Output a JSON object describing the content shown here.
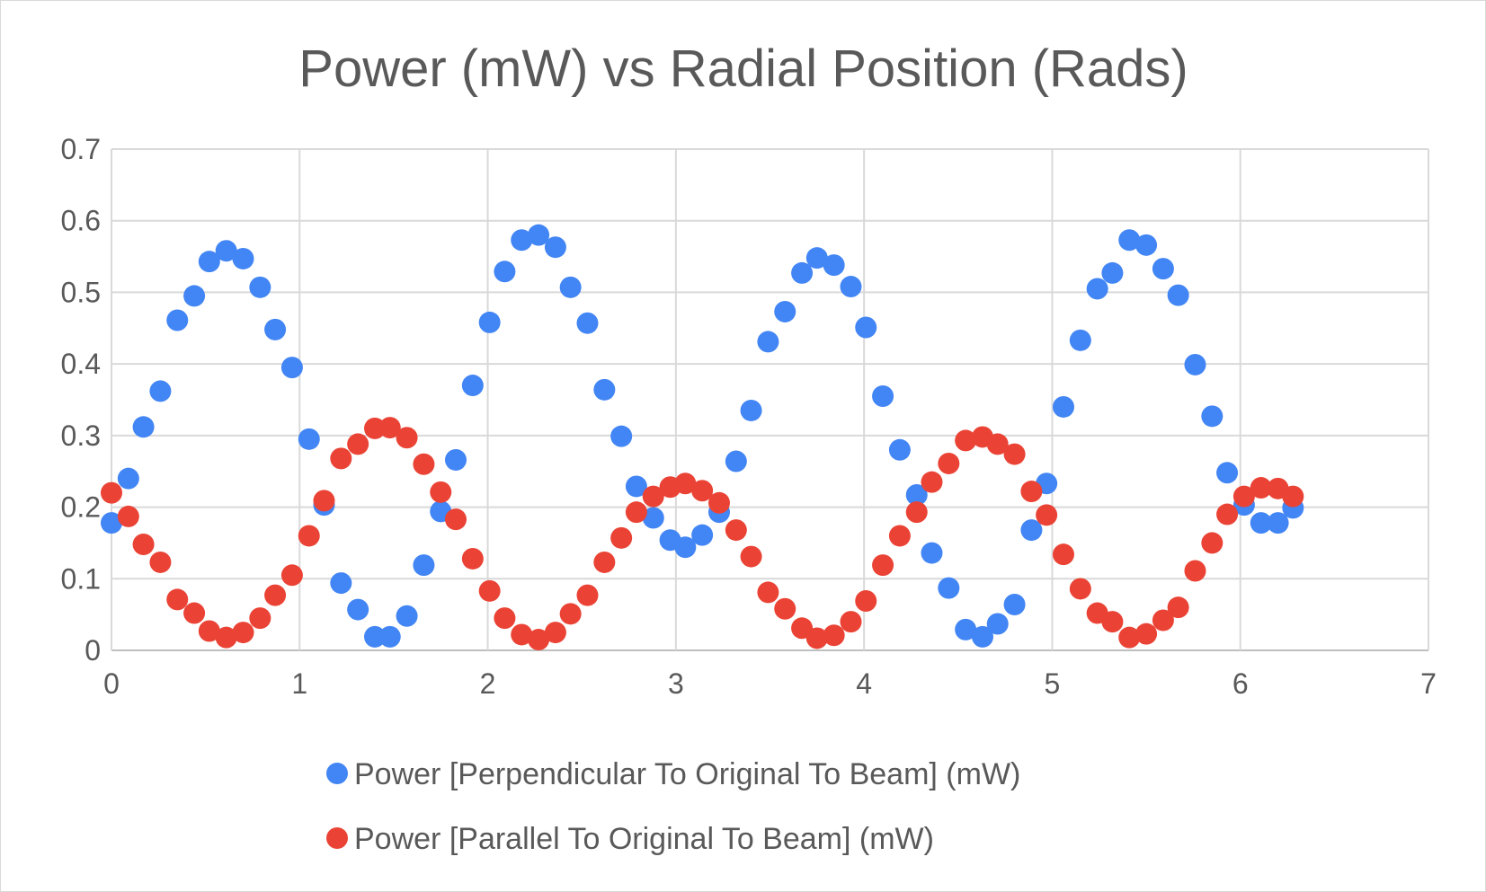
{
  "chart_data": {
    "type": "scatter",
    "title": "Power (mW) vs Radial Position (Rads)",
    "xlabel": "",
    "ylabel": "",
    "xlim": [
      0,
      7
    ],
    "ylim": [
      0,
      0.7
    ],
    "x_ticks": [
      "0",
      "1",
      "2",
      "3",
      "4",
      "5",
      "6",
      "7"
    ],
    "y_ticks": [
      "0",
      "0.1",
      "0.2",
      "0.3",
      "0.4",
      "0.5",
      "0.6",
      "0.7"
    ],
    "grid": true,
    "legend_position": "bottom",
    "colors": {
      "perpendicular": "#4285f4",
      "parallel": "#ea4335"
    },
    "series": [
      {
        "name": "Power [Perpendicular To Original To Beam] (mW)",
        "color": "#4285f4",
        "points": [
          [
            0.0,
            0.178
          ],
          [
            0.09,
            0.24
          ],
          [
            0.17,
            0.312
          ],
          [
            0.26,
            0.362
          ],
          [
            0.35,
            0.461
          ],
          [
            0.44,
            0.495
          ],
          [
            0.52,
            0.543
          ],
          [
            0.61,
            0.558
          ],
          [
            0.7,
            0.547
          ],
          [
            0.79,
            0.507
          ],
          [
            0.87,
            0.448
          ],
          [
            0.96,
            0.395
          ],
          [
            1.05,
            0.295
          ],
          [
            1.13,
            0.203
          ],
          [
            1.22,
            0.094
          ],
          [
            1.31,
            0.057
          ],
          [
            1.4,
            0.019
          ],
          [
            1.48,
            0.019
          ],
          [
            1.57,
            0.048
          ],
          [
            1.66,
            0.119
          ],
          [
            1.75,
            0.194
          ],
          [
            1.83,
            0.266
          ],
          [
            1.92,
            0.37
          ],
          [
            2.01,
            0.458
          ],
          [
            2.09,
            0.529
          ],
          [
            2.18,
            0.573
          ],
          [
            2.27,
            0.58
          ],
          [
            2.36,
            0.563
          ],
          [
            2.44,
            0.507
          ],
          [
            2.53,
            0.457
          ],
          [
            2.62,
            0.364
          ],
          [
            2.71,
            0.299
          ],
          [
            2.79,
            0.229
          ],
          [
            2.88,
            0.185
          ],
          [
            2.97,
            0.154
          ],
          [
            3.05,
            0.144
          ],
          [
            3.14,
            0.161
          ],
          [
            3.23,
            0.193
          ],
          [
            3.32,
            0.264
          ],
          [
            3.4,
            0.335
          ],
          [
            3.49,
            0.431
          ],
          [
            3.58,
            0.473
          ],
          [
            3.67,
            0.527
          ],
          [
            3.75,
            0.548
          ],
          [
            3.84,
            0.538
          ],
          [
            3.93,
            0.508
          ],
          [
            4.01,
            0.451
          ],
          [
            4.1,
            0.355
          ],
          [
            4.19,
            0.28
          ],
          [
            4.28,
            0.217
          ],
          [
            4.36,
            0.136
          ],
          [
            4.45,
            0.087
          ],
          [
            4.54,
            0.029
          ],
          [
            4.63,
            0.019
          ],
          [
            4.71,
            0.037
          ],
          [
            4.8,
            0.064
          ],
          [
            4.89,
            0.168
          ],
          [
            4.97,
            0.233
          ],
          [
            5.06,
            0.34
          ],
          [
            5.15,
            0.433
          ],
          [
            5.24,
            0.505
          ],
          [
            5.32,
            0.527
          ],
          [
            5.41,
            0.573
          ],
          [
            5.5,
            0.566
          ],
          [
            5.59,
            0.533
          ],
          [
            5.67,
            0.496
          ],
          [
            5.76,
            0.399
          ],
          [
            5.85,
            0.327
          ],
          [
            5.93,
            0.248
          ],
          [
            6.02,
            0.203
          ],
          [
            6.11,
            0.178
          ],
          [
            6.2,
            0.178
          ],
          [
            6.28,
            0.199
          ]
        ]
      },
      {
        "name": "Power [Parallel To Original To Beam] (mW)",
        "color": "#ea4335",
        "points": [
          [
            0.0,
            0.22
          ],
          [
            0.09,
            0.187
          ],
          [
            0.17,
            0.148
          ],
          [
            0.26,
            0.123
          ],
          [
            0.35,
            0.071
          ],
          [
            0.44,
            0.052
          ],
          [
            0.52,
            0.027
          ],
          [
            0.61,
            0.018
          ],
          [
            0.7,
            0.025
          ],
          [
            0.79,
            0.045
          ],
          [
            0.87,
            0.077
          ],
          [
            0.96,
            0.105
          ],
          [
            1.05,
            0.16
          ],
          [
            1.13,
            0.209
          ],
          [
            1.22,
            0.268
          ],
          [
            1.31,
            0.288
          ],
          [
            1.4,
            0.31
          ],
          [
            1.48,
            0.311
          ],
          [
            1.57,
            0.297
          ],
          [
            1.66,
            0.26
          ],
          [
            1.75,
            0.221
          ],
          [
            1.83,
            0.183
          ],
          [
            1.92,
            0.128
          ],
          [
            2.01,
            0.083
          ],
          [
            2.09,
            0.045
          ],
          [
            2.18,
            0.022
          ],
          [
            2.27,
            0.015
          ],
          [
            2.36,
            0.025
          ],
          [
            2.44,
            0.051
          ],
          [
            2.53,
            0.077
          ],
          [
            2.62,
            0.123
          ],
          [
            2.71,
            0.157
          ],
          [
            2.79,
            0.193
          ],
          [
            2.88,
            0.215
          ],
          [
            2.97,
            0.228
          ],
          [
            3.05,
            0.233
          ],
          [
            3.14,
            0.223
          ],
          [
            3.23,
            0.206
          ],
          [
            3.32,
            0.168
          ],
          [
            3.4,
            0.131
          ],
          [
            3.49,
            0.081
          ],
          [
            3.58,
            0.058
          ],
          [
            3.67,
            0.031
          ],
          [
            3.75,
            0.017
          ],
          [
            3.84,
            0.021
          ],
          [
            3.93,
            0.04
          ],
          [
            4.01,
            0.069
          ],
          [
            4.1,
            0.119
          ],
          [
            4.19,
            0.16
          ],
          [
            4.28,
            0.193
          ],
          [
            4.36,
            0.235
          ],
          [
            4.45,
            0.261
          ],
          [
            4.54,
            0.293
          ],
          [
            4.63,
            0.298
          ],
          [
            4.71,
            0.288
          ],
          [
            4.8,
            0.274
          ],
          [
            4.89,
            0.222
          ],
          [
            4.97,
            0.189
          ],
          [
            5.06,
            0.134
          ],
          [
            5.15,
            0.086
          ],
          [
            5.24,
            0.052
          ],
          [
            5.32,
            0.04
          ],
          [
            5.41,
            0.018
          ],
          [
            5.5,
            0.023
          ],
          [
            5.59,
            0.042
          ],
          [
            5.67,
            0.06
          ],
          [
            5.76,
            0.111
          ],
          [
            5.85,
            0.15
          ],
          [
            5.93,
            0.19
          ],
          [
            6.02,
            0.215
          ],
          [
            6.11,
            0.227
          ],
          [
            6.2,
            0.226
          ],
          [
            6.28,
            0.215
          ]
        ]
      }
    ]
  }
}
